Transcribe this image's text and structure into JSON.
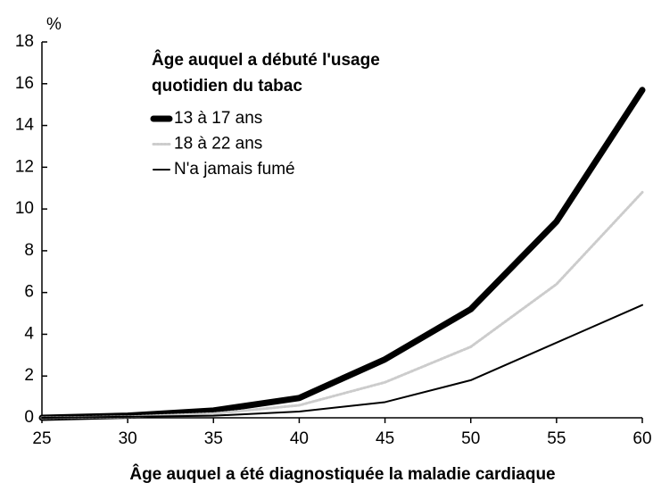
{
  "chart_data": {
    "type": "line",
    "y_unit": "%",
    "xlabel": "Âge auquel a été diagnostiquée la maladie cardiaque",
    "legend_title": [
      "Âge auquel a débuté l'usage",
      "quotidien du tabac"
    ],
    "x": [
      25,
      30,
      35,
      40,
      45,
      50,
      55,
      60
    ],
    "series": [
      {
        "name": "13 à 17 ans",
        "color": "#000000",
        "values": [
          0,
          0.1,
          0.35,
          0.95,
          2.8,
          5.2,
          9.4,
          15.7
        ]
      },
      {
        "name": "18 à 22 ans",
        "color": "#cccccc",
        "values": [
          0,
          0.05,
          0.2,
          0.6,
          1.7,
          3.4,
          6.4,
          10.8
        ]
      },
      {
        "name": "N'a jamais fumé",
        "color": "#000000",
        "values": [
          0,
          0.05,
          0.1,
          0.3,
          0.75,
          1.8,
          3.6,
          5.4
        ]
      }
    ],
    "xlim": [
      25,
      60
    ],
    "xticks": [
      25,
      30,
      35,
      40,
      45,
      50,
      55,
      60
    ],
    "ylim": [
      0,
      18
    ],
    "yticks": [
      0,
      2,
      4,
      6,
      8,
      10,
      12,
      14,
      16,
      18
    ],
    "grid": false
  }
}
